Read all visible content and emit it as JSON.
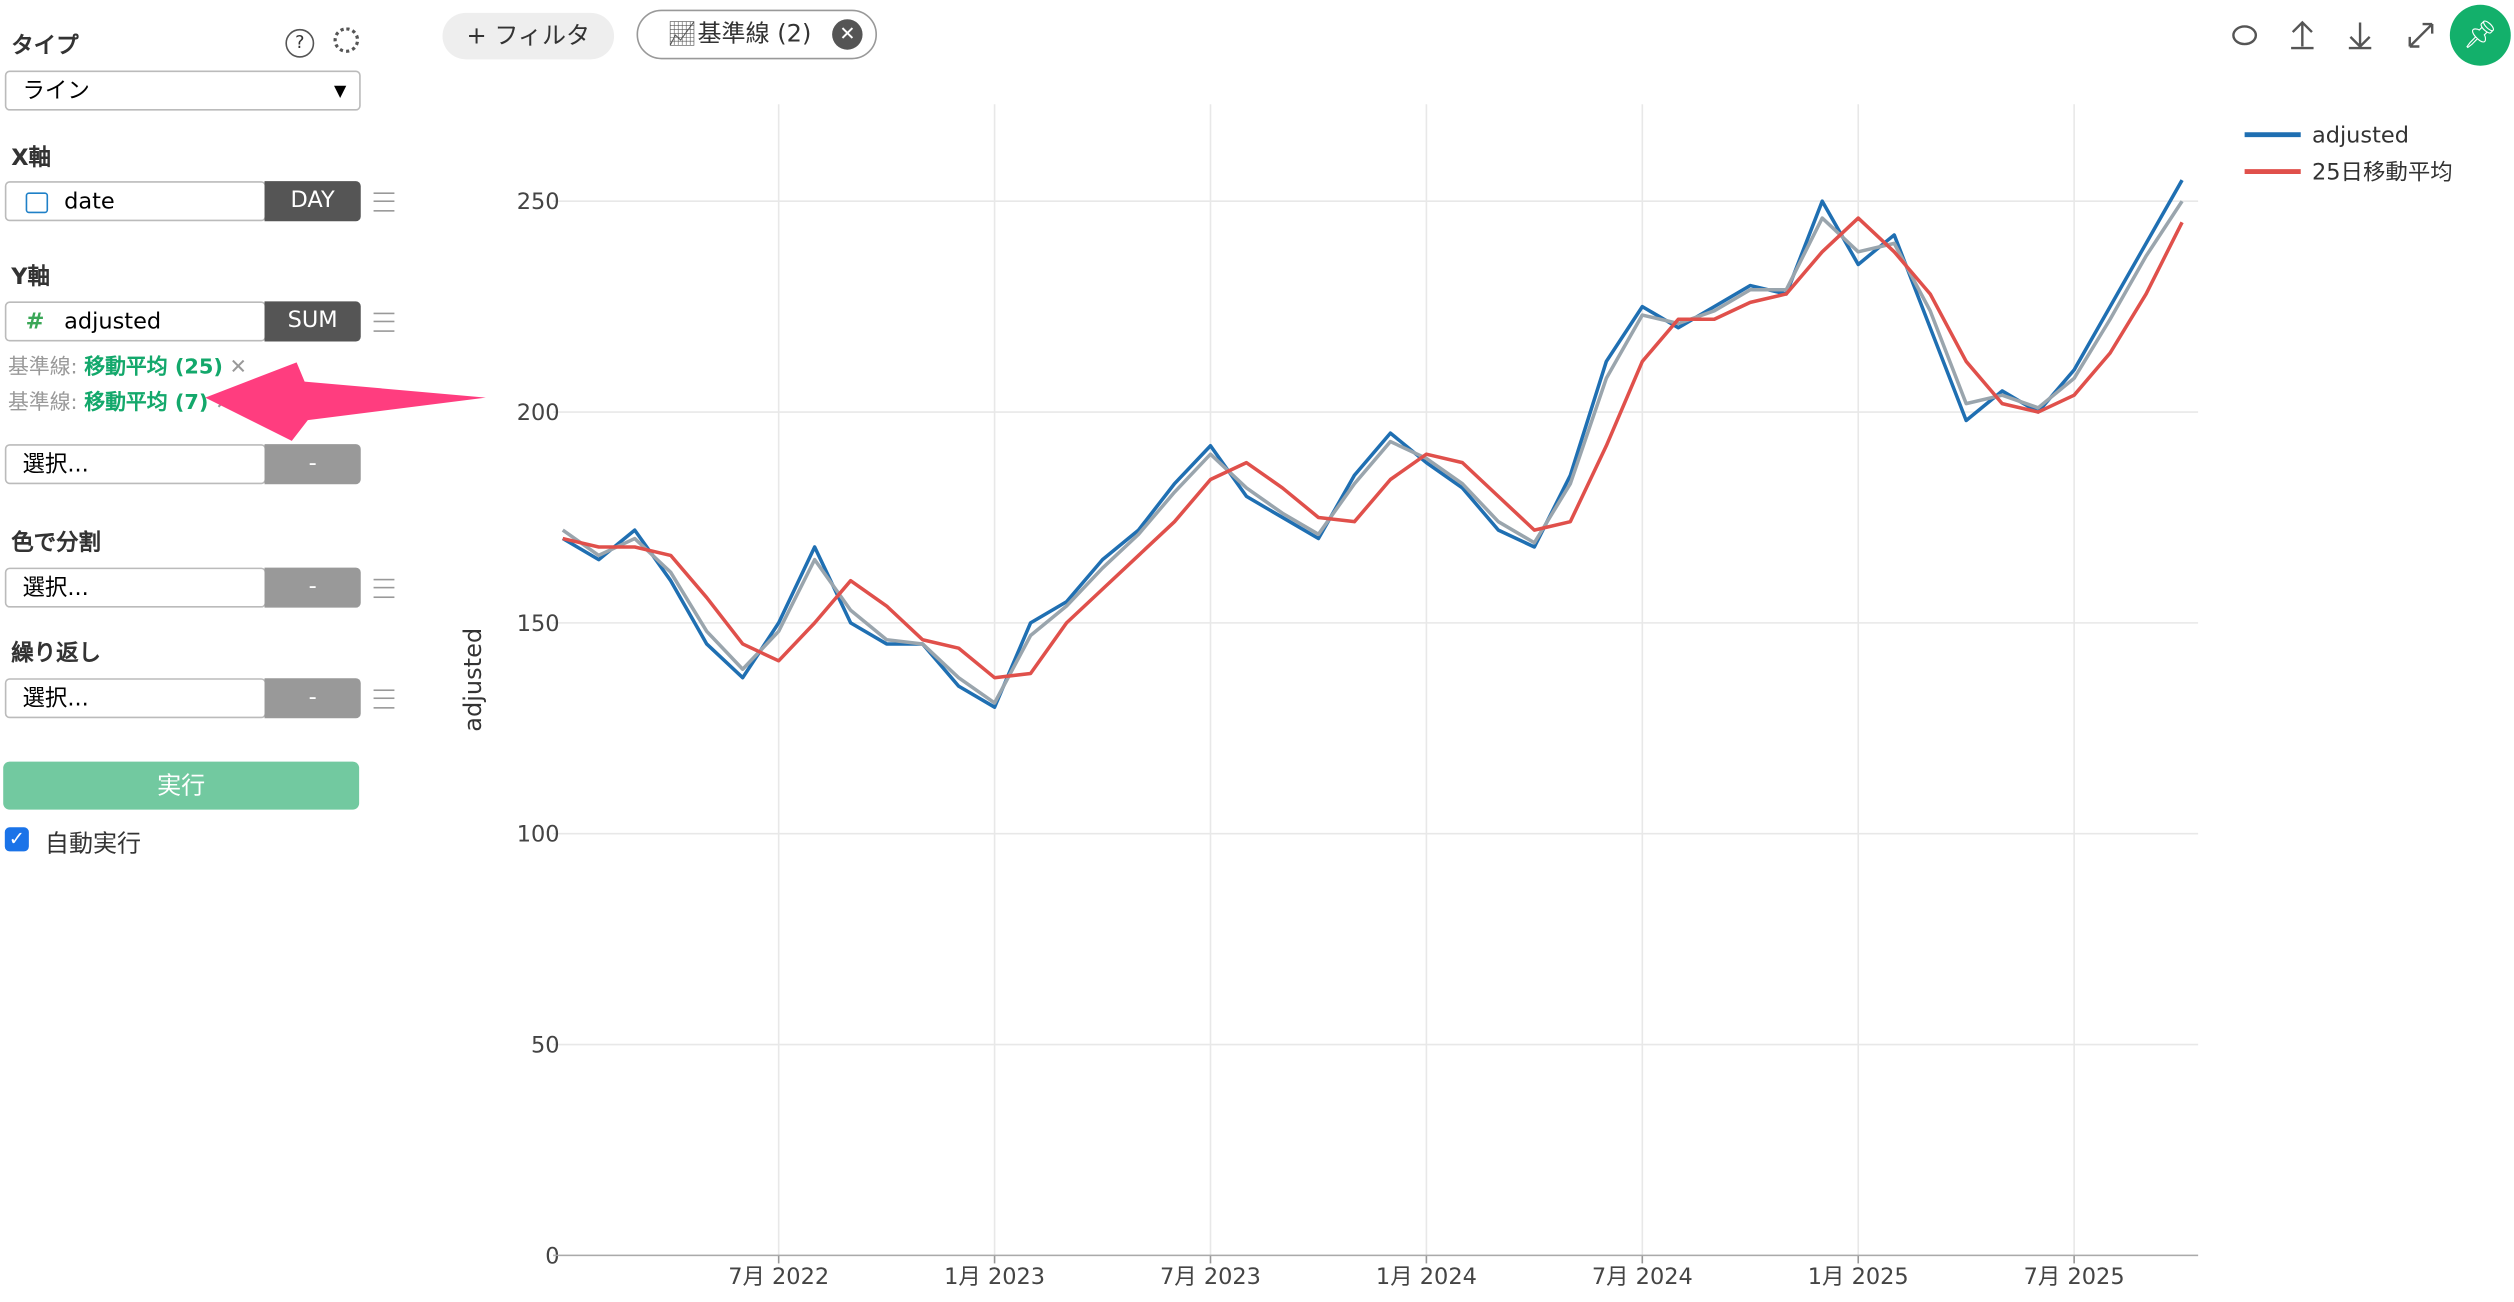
{
  "sidebar": {
    "type_label": "タイプ",
    "type_value": "ライン",
    "x_label": "X軸",
    "x_field": "date",
    "x_agg": "DAY",
    "y_label": "Y軸",
    "y_field": "adjusted",
    "y_agg": "SUM",
    "ref_lines": [
      {
        "prefix": "基準線:",
        "name": "移動平均 (25)"
      },
      {
        "prefix": "基準線:",
        "name": "移動平均 (7)"
      }
    ],
    "select_1": "選択...",
    "select_1_btn": "-",
    "color_label": "色で分割",
    "color_select": "選択...",
    "color_btn": "-",
    "repeat_label": "繰り返し",
    "repeat_select": "選択...",
    "repeat_btn": "-",
    "run": "実行",
    "auto_run": "自動実行"
  },
  "toolbar": {
    "filter": "+ フィルタ",
    "ref_chip": "基準線 (2)"
  },
  "chart_data": {
    "type": "line",
    "y_label": "adjusted",
    "x": [
      "2022-01",
      "2022-02",
      "2022-03",
      "2022-04",
      "2022-05",
      "2022-06",
      "2022-07",
      "2022-08",
      "2022-09",
      "2022-10",
      "2022-11",
      "2022-12",
      "2023-01",
      "2023-02",
      "2023-03",
      "2023-04",
      "2023-05",
      "2023-06",
      "2023-07",
      "2023-08",
      "2023-09",
      "2023-10",
      "2023-11",
      "2023-12",
      "2024-01",
      "2024-02",
      "2024-03",
      "2024-04",
      "2024-05",
      "2024-06",
      "2024-07",
      "2024-08",
      "2024-09",
      "2024-10",
      "2024-11",
      "2024-12",
      "2025-01",
      "2025-02",
      "2025-03",
      "2025-04",
      "2025-05",
      "2025-06",
      "2025-07",
      "2025-08",
      "2025-09",
      "2025-10"
    ],
    "series": [
      {
        "name": "adjusted",
        "color": "#1f6fb2",
        "values": [
          170,
          165,
          172,
          160,
          145,
          137,
          150,
          168,
          150,
          145,
          145,
          135,
          130,
          150,
          155,
          165,
          172,
          183,
          192,
          180,
          175,
          170,
          185,
          195,
          188,
          182,
          172,
          168,
          185,
          212,
          225,
          220,
          225,
          230,
          228,
          250,
          235,
          242,
          220,
          198,
          205,
          200,
          210,
          225,
          240,
          255
        ]
      },
      {
        "color": "#9aa5ad",
        "values": [
          172,
          166,
          170,
          162,
          148,
          139,
          148,
          165,
          153,
          146,
          145,
          137,
          131,
          147,
          154,
          163,
          171,
          181,
          190,
          182,
          176,
          171,
          183,
          193,
          189,
          183,
          174,
          169,
          183,
          208,
          223,
          221,
          224,
          229,
          229,
          246,
          238,
          240,
          224,
          202,
          204,
          201,
          208,
          222,
          237,
          250
        ]
      },
      {
        "name": "25日移動平均",
        "color": "#e0504b",
        "values": [
          170,
          168,
          168,
          166,
          156,
          145,
          141,
          150,
          160,
          154,
          146,
          144,
          137,
          138,
          150,
          158,
          166,
          174,
          184,
          188,
          182,
          175,
          174,
          184,
          190,
          188,
          180,
          172,
          174,
          192,
          212,
          222,
          222,
          226,
          228,
          238,
          246,
          238,
          228,
          212,
          202,
          200,
          204,
          214,
          228,
          245
        ]
      }
    ],
    "xlim": [
      "2022-01",
      "2025-10"
    ],
    "xticks": [
      {
        "value": "2022-07",
        "label": "7月 2022"
      },
      {
        "value": "2023-01",
        "label": "1月 2023"
      },
      {
        "value": "2023-07",
        "label": "7月 2023"
      },
      {
        "value": "2024-01",
        "label": "1月 2024"
      },
      {
        "value": "2024-07",
        "label": "7月 2024"
      },
      {
        "value": "2025-01",
        "label": "1月 2025"
      },
      {
        "value": "2025-07",
        "label": "7月 2025"
      }
    ],
    "ylim": [
      0,
      273
    ],
    "yticks": [
      0,
      50,
      100,
      150,
      200,
      250
    ],
    "grid": true,
    "legend": "top-right"
  }
}
